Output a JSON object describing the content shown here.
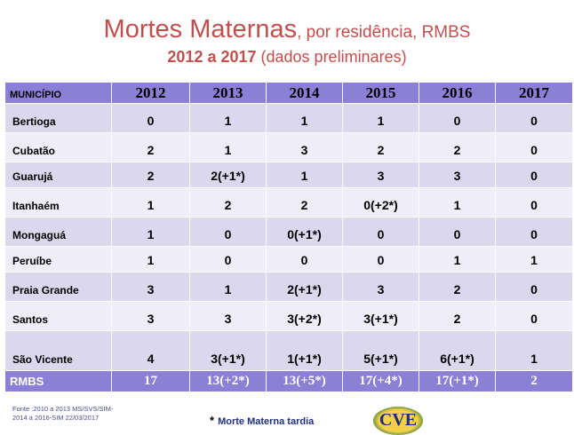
{
  "title": {
    "main": "Mortes Maternas",
    "sub": ", por residência, RMBS",
    "years": "2012 a  2017",
    "years_note": " (dados preliminares)"
  },
  "table": {
    "headers": [
      "MUNICÍPIO",
      "2012",
      "2013",
      "2014",
      "2015",
      "2016",
      "2017"
    ],
    "rows": [
      {
        "municipio": "Bertioga",
        "values": [
          "0",
          "1",
          "1",
          "1",
          "0",
          "0"
        ]
      },
      {
        "municipio": "Cubatão",
        "values": [
          "2",
          "1",
          "3",
          "2",
          "2",
          "0"
        ]
      },
      {
        "municipio": "Guarujá",
        "values": [
          "2",
          "2(+1*)",
          "1",
          "3",
          "3",
          "0"
        ]
      },
      {
        "municipio": "Itanhaém",
        "values": [
          "1",
          "2",
          "2",
          "0(+2*)",
          "1",
          "0"
        ]
      },
      {
        "municipio": "Mongaguá",
        "values": [
          "1",
          "0",
          "0(+1*)",
          "0",
          "0",
          "0"
        ]
      },
      {
        "municipio": "Peruíbe",
        "values": [
          "1",
          "0",
          "0",
          "0",
          "1",
          "1"
        ]
      },
      {
        "municipio": "Praia Grande",
        "values": [
          "3",
          "1",
          "2(+1*)",
          "3",
          "2",
          "0"
        ]
      },
      {
        "municipio": "Santos",
        "values": [
          "3",
          "3",
          "3(+2*)",
          "3(+1*)",
          "2",
          "0"
        ]
      },
      {
        "municipio": "São Vicente",
        "values": [
          "4",
          "3(+1*)",
          "1(+1*)",
          "5(+1*)",
          "6(+1*)",
          "1"
        ]
      }
    ],
    "total": {
      "municipio": "RMBS",
      "values": [
        "17",
        "13(+2*)",
        "13(+5*)",
        "17(+4*)",
        "17(+1*)",
        "2"
      ]
    }
  },
  "footer": {
    "source_line1": "Fonte :2010 a  2013 MS/SVS/SIM-",
    "source_line2": "2014 a 2016-SIM 22/03/2017",
    "note_star": "*",
    "note_text": "Morte Materna tardia",
    "logo_text": "CVE"
  }
}
